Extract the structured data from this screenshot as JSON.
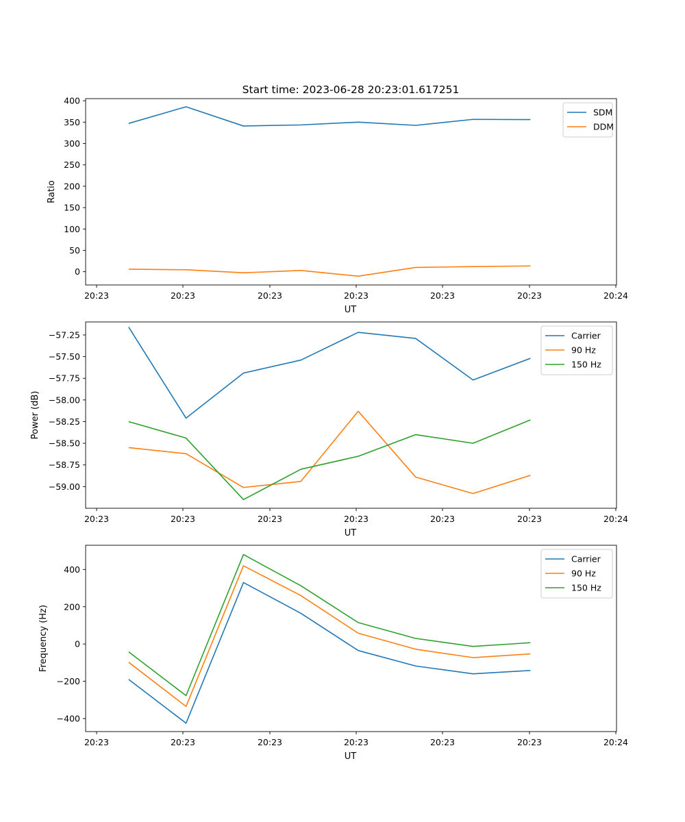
{
  "figure_title": "Start time: 2023-06-28 20:23:01.617251",
  "colors": {
    "blue": "#1f77b4",
    "orange": "#ff7f0e",
    "green": "#2ca02c",
    "axis": "#000000",
    "legend_border": "#cccccc"
  },
  "chart_data": [
    {
      "type": "line",
      "title": "Start time: 2023-06-28 20:23:01.617251",
      "xlabel": "UT",
      "ylabel": "Ratio",
      "x_tick_labels": [
        "20:23",
        "20:23",
        "20:23",
        "20:23",
        "20:23",
        "20:23",
        "20:23",
        "20:24"
      ],
      "y_ticks": [
        0,
        50,
        100,
        150,
        200,
        250,
        300,
        350,
        400
      ],
      "y_tick_labels": [
        "0",
        "50",
        "100",
        "150",
        "200",
        "250",
        "300",
        "350",
        "400"
      ],
      "ylim": [
        -31,
        405
      ],
      "xlim": [
        -0.75,
        8.5
      ],
      "x": [
        0,
        1,
        2,
        3,
        4,
        5,
        6,
        7
      ],
      "legend_position": "upper right",
      "grid": false,
      "series": [
        {
          "name": "SDM",
          "color": "#1f77b4",
          "values": [
            347,
            386,
            341,
            343.5,
            350,
            342.5,
            356.5,
            356
          ]
        },
        {
          "name": "DDM",
          "color": "#ff7f0e",
          "values": [
            6,
            4.5,
            -2.5,
            3,
            -10.5,
            10,
            12,
            13.5
          ]
        }
      ]
    },
    {
      "type": "line",
      "title": "",
      "xlabel": "UT",
      "ylabel": "Power (dB)",
      "x_tick_labels": [
        "20:23",
        "20:23",
        "20:23",
        "20:23",
        "20:23",
        "20:23",
        "20:23",
        "20:24"
      ],
      "y_ticks": [
        -59.0,
        -58.75,
        -58.5,
        -58.25,
        -58.0,
        -57.75,
        -57.5,
        -57.25
      ],
      "y_tick_labels": [
        "−59.00",
        "−58.75",
        "−58.50",
        "−58.25",
        "−58.00",
        "−57.75",
        "−57.50",
        "−57.25"
      ],
      "ylim": [
        -59.25,
        -57.1
      ],
      "xlim": [
        -0.75,
        8.5
      ],
      "x": [
        0,
        1,
        2,
        3,
        4,
        5,
        6,
        7
      ],
      "legend_position": "upper right",
      "grid": false,
      "series": [
        {
          "name": "Carrier",
          "color": "#1f77b4",
          "values": [
            -57.16,
            -58.21,
            -57.69,
            -57.54,
            -57.22,
            -57.29,
            -57.77,
            -57.52
          ]
        },
        {
          "name": "90 Hz",
          "color": "#ff7f0e",
          "values": [
            -58.55,
            -58.62,
            -59.01,
            -58.94,
            -58.13,
            -58.89,
            -59.08,
            -58.87
          ]
        },
        {
          "name": "150 Hz",
          "color": "#2ca02c",
          "values": [
            -58.25,
            -58.44,
            -59.15,
            -58.8,
            -58.65,
            -58.4,
            -58.5,
            -58.23
          ]
        }
      ]
    },
    {
      "type": "line",
      "title": "",
      "xlabel": "UT",
      "ylabel": "Frequency (Hz)",
      "x_tick_labels": [
        "20:23",
        "20:23",
        "20:23",
        "20:23",
        "20:23",
        "20:23",
        "20:23",
        "20:24"
      ],
      "y_ticks": [
        -400,
        -200,
        0,
        200,
        400
      ],
      "y_tick_labels": [
        "−400",
        "−200",
        "0",
        "200",
        "400"
      ],
      "ylim": [
        -470,
        530
      ],
      "xlim": [
        -0.75,
        8.5
      ],
      "x": [
        0,
        1,
        2,
        3,
        4,
        5,
        6,
        7
      ],
      "legend_position": "upper right",
      "grid": false,
      "series": [
        {
          "name": "Carrier",
          "color": "#1f77b4",
          "values": [
            -190,
            -425,
            330,
            165,
            -35,
            -118,
            -160,
            -142
          ]
        },
        {
          "name": "90 Hz",
          "color": "#ff7f0e",
          "values": [
            -98,
            -335,
            420,
            260,
            58,
            -28,
            -73,
            -53
          ]
        },
        {
          "name": "150 Hz",
          "color": "#2ca02c",
          "values": [
            -42,
            -277,
            480,
            313,
            115,
            30,
            -13,
            7
          ]
        }
      ]
    }
  ]
}
